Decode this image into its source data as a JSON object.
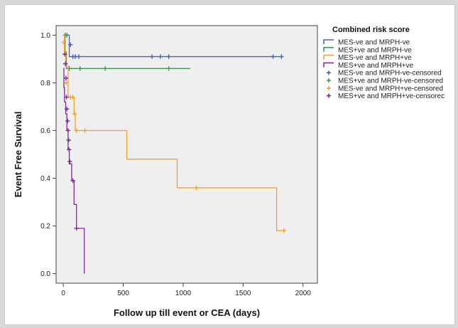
{
  "chart_data": {
    "type": "line",
    "subtype": "kaplan-meier",
    "xlabel": "Follow up till event or CEA (days)",
    "ylabel": "Event Free Survival",
    "xlim": [
      -60,
      2120
    ],
    "ylim": [
      -0.04,
      1.04
    ],
    "x_ticks": [
      0,
      500,
      1000,
      1500,
      2000
    ],
    "y_ticks": [
      0.0,
      0.2,
      0.4,
      0.6,
      0.8,
      1.0
    ],
    "x_tick_labels": [
      "0",
      "500",
      "1000",
      "1500",
      "2000"
    ],
    "y_tick_labels": [
      "0.0",
      "0.2",
      "0.4",
      "0.6",
      "0.8",
      "1.0"
    ],
    "plot_background": "#efefef",
    "grid": false,
    "legend": {
      "title": "Combined risk score",
      "position": "right",
      "line_entries": [
        "MES-ve and MRPH-ve",
        "MES+ve and MRPH-ve",
        "MES-ve and MRPH+ve",
        "MES+ve and MRPH+ve"
      ],
      "censored_entries": [
        "MES-ve and MRPH-ve-censored",
        "MES+ve and MRPH-ve-censored",
        "MES-ve and MRPH+ve-censored",
        "MES+ve and MRPH+ve-censorec"
      ]
    },
    "series": [
      {
        "name": "MES-ve and MRPH-ve",
        "color": "#4a63b8",
        "steps": [
          [
            0,
            1.0
          ],
          [
            50,
            0.91
          ],
          [
            1830,
            0.91
          ]
        ],
        "censored": [
          [
            15,
            1.0
          ],
          [
            30,
            1.0
          ],
          [
            60,
            0.96
          ],
          [
            80,
            0.91
          ],
          [
            100,
            0.91
          ],
          [
            130,
            0.91
          ],
          [
            740,
            0.91
          ],
          [
            810,
            0.91
          ],
          [
            880,
            0.91
          ],
          [
            1750,
            0.91
          ],
          [
            1820,
            0.91
          ]
        ]
      },
      {
        "name": "MES+ve and MRPH-ve",
        "color": "#3a9a52",
        "steps": [
          [
            0,
            1.0
          ],
          [
            15,
            0.93
          ],
          [
            25,
            0.86
          ],
          [
            1060,
            0.86
          ]
        ],
        "censored": [
          [
            30,
            1.0
          ],
          [
            50,
            0.86
          ],
          [
            140,
            0.86
          ],
          [
            350,
            0.86
          ],
          [
            880,
            0.86
          ]
        ]
      },
      {
        "name": "MES-ve and MRPH+ve",
        "color": "#f5a22c",
        "steps": [
          [
            0,
            1.0
          ],
          [
            10,
            0.93
          ],
          [
            20,
            0.87
          ],
          [
            40,
            0.74
          ],
          [
            90,
            0.67
          ],
          [
            100,
            0.6
          ],
          [
            530,
            0.6
          ],
          [
            530,
            0.48
          ],
          [
            950,
            0.48
          ],
          [
            950,
            0.36
          ],
          [
            1780,
            0.36
          ],
          [
            1780,
            0.18
          ],
          [
            1840,
            0.18
          ]
        ],
        "censored": [
          [
            5,
            0.97
          ],
          [
            25,
            0.8
          ],
          [
            60,
            0.74
          ],
          [
            80,
            0.74
          ],
          [
            95,
            0.67
          ],
          [
            110,
            0.6
          ],
          [
            180,
            0.6
          ],
          [
            1110,
            0.36
          ],
          [
            1840,
            0.18
          ]
        ]
      },
      {
        "name": "MES+ve and MRPH+ve",
        "color": "#7b2d96",
        "steps": [
          [
            0,
            0.86
          ],
          [
            5,
            0.78
          ],
          [
            10,
            0.72
          ],
          [
            20,
            0.67
          ],
          [
            30,
            0.6
          ],
          [
            40,
            0.52
          ],
          [
            50,
            0.46
          ],
          [
            70,
            0.39
          ],
          [
            90,
            0.29
          ],
          [
            110,
            0.19
          ],
          [
            175,
            0.19
          ],
          [
            175,
            0.0
          ]
        ],
        "censored": [
          [
            12,
            0.92
          ],
          [
            18,
            0.88
          ],
          [
            22,
            0.82
          ],
          [
            26,
            0.74
          ],
          [
            30,
            0.69
          ],
          [
            36,
            0.64
          ],
          [
            40,
            0.6
          ],
          [
            45,
            0.56
          ],
          [
            48,
            0.52
          ],
          [
            55,
            0.47
          ],
          [
            80,
            0.39
          ],
          [
            110,
            0.19
          ]
        ]
      }
    ]
  }
}
